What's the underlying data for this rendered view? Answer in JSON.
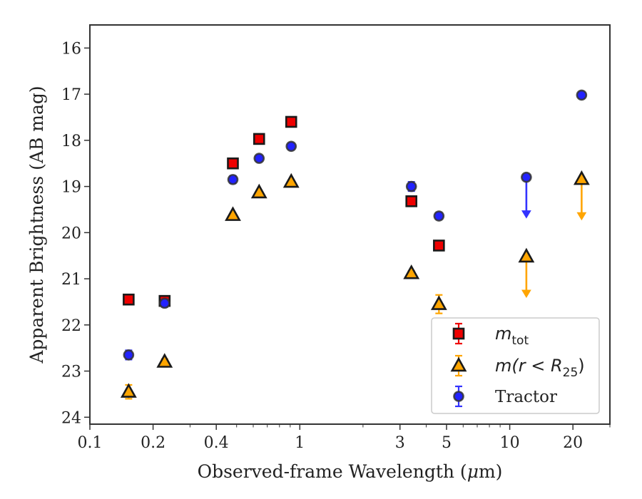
{
  "chart_data": {
    "type": "scatter",
    "xscale": "log",
    "xlim": [
      0.1,
      30
    ],
    "ylim": [
      24.15,
      15.5
    ],
    "y_inverted": true,
    "xlabel_prefix": "Observed-frame Wavelength (",
    "xlabel_mu": "μ",
    "xlabel_suffix": "m)",
    "ylabel": "Apparent Brightness (AB mag)",
    "x_ticks": [
      0.1,
      0.2,
      0.4,
      1,
      3,
      5,
      10,
      20
    ],
    "x_tick_labels": [
      "0.1",
      "0.2",
      "0.4",
      "1",
      "3",
      "5",
      "10",
      "20"
    ],
    "y_ticks": [
      16,
      17,
      18,
      19,
      20,
      21,
      22,
      23,
      24
    ],
    "y_tick_labels": [
      "16",
      "17",
      "18",
      "19",
      "20",
      "21",
      "22",
      "23",
      "24"
    ],
    "grid": false,
    "legend_position": "lower-right",
    "series": [
      {
        "name_main": "m",
        "name_sub": "tot",
        "marker": "square",
        "color": "#ee0000",
        "error_color": "#ee0000",
        "points": [
          {
            "x": 0.153,
            "y": 21.45,
            "yerr": 0.06
          },
          {
            "x": 0.227,
            "y": 21.48,
            "yerr": 0.08
          },
          {
            "x": 0.48,
            "y": 18.5,
            "yerr": 0.03
          },
          {
            "x": 0.64,
            "y": 17.97,
            "yerr": 0.03
          },
          {
            "x": 0.91,
            "y": 17.6,
            "yerr": 0.03
          },
          {
            "x": 3.4,
            "y": 19.32,
            "yerr": 0.03
          },
          {
            "x": 4.6,
            "y": 20.28,
            "yerr": 0.04
          }
        ]
      },
      {
        "name_main": "m(r < R",
        "name_sub": "25",
        "name_end": ")",
        "marker": "triangle",
        "color": "#ffa500",
        "error_color": "#ffa500",
        "points": [
          {
            "x": 0.153,
            "y": 23.45,
            "yerr": 0.15
          },
          {
            "x": 0.227,
            "y": 22.8,
            "yerr": 0.06
          },
          {
            "x": 0.48,
            "y": 19.62,
            "yerr": 0.03
          },
          {
            "x": 0.64,
            "y": 19.13,
            "yerr": 0.03
          },
          {
            "x": 0.91,
            "y": 18.9,
            "yerr": 0.03
          },
          {
            "x": 3.4,
            "y": 20.88,
            "yerr": 0.05
          },
          {
            "x": 4.6,
            "y": 21.55,
            "yerr": 0.2
          },
          {
            "x": 12,
            "y": 20.52,
            "upper_limit": true
          },
          {
            "x": 22,
            "y": 18.84,
            "upper_limit": true
          }
        ]
      },
      {
        "name_main": "Tractor",
        "marker": "circle",
        "color": "#2222ff",
        "error_color": "#3333ff",
        "points": [
          {
            "x": 0.153,
            "y": 22.65,
            "yerr": 0.1
          },
          {
            "x": 0.227,
            "y": 21.53,
            "yerr": 0.08
          },
          {
            "x": 0.48,
            "y": 18.85,
            "yerr": 0.08
          },
          {
            "x": 0.64,
            "y": 18.39,
            "yerr": 0.06
          },
          {
            "x": 0.91,
            "y": 18.13,
            "yerr": 0.06
          },
          {
            "x": 3.4,
            "y": 19.0,
            "yerr": 0.1
          },
          {
            "x": 4.6,
            "y": 19.64,
            "yerr": 0.07
          },
          {
            "x": 12,
            "y": 18.8,
            "upper_limit": true
          },
          {
            "x": 22,
            "y": 17.02,
            "yerr": 0.06
          }
        ]
      }
    ]
  }
}
